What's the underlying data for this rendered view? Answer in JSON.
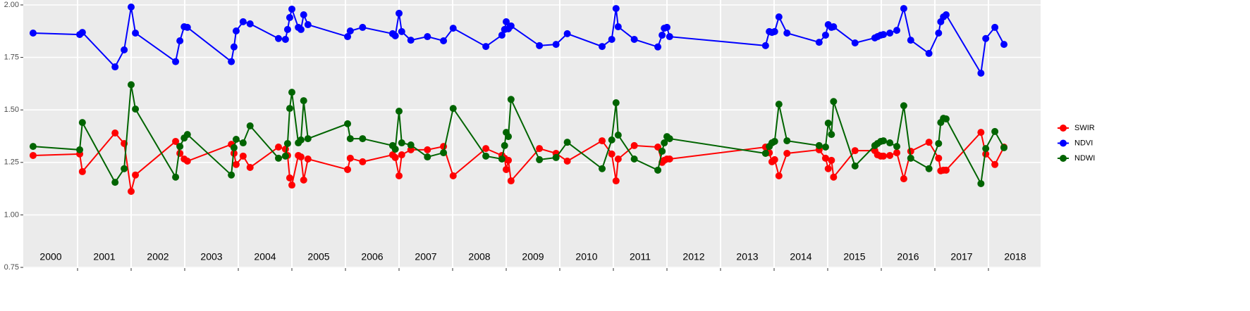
{
  "chart_data": {
    "type": "line",
    "x": [
      2000.17,
      2001.04,
      2001.09,
      2001.7,
      2001.87,
      2002.0,
      2002.08,
      2002.83,
      2002.91,
      2002.99,
      2003.05,
      2003.87,
      2003.92,
      2003.96,
      2004.09,
      2004.22,
      2004.75,
      2004.88,
      2004.92,
      2004.96,
      2005.0,
      2005.12,
      2005.17,
      2005.22,
      2005.3,
      2006.04,
      2006.09,
      2006.32,
      2006.88,
      2006.93,
      2007.0,
      2007.05,
      2007.22,
      2007.53,
      2007.83,
      2008.01,
      2008.62,
      2008.92,
      2008.97,
      2009.0,
      2009.04,
      2009.09,
      2009.62,
      2009.93,
      2010.14,
      2010.79,
      2010.97,
      2011.05,
      2011.09,
      2011.39,
      2011.83,
      2011.91,
      2011.95,
      2012.0,
      2012.05,
      2013.84,
      2013.91,
      2013.96,
      2014.01,
      2014.09,
      2014.24,
      2014.84,
      2014.96,
      2015.01,
      2015.07,
      2015.11,
      2015.51,
      2015.88,
      2015.93,
      2015.99,
      2016.04,
      2016.16,
      2016.29,
      2016.42,
      2016.55,
      2016.89,
      2017.07,
      2017.11,
      2017.16,
      2017.21,
      2017.86,
      2017.95,
      2018.12,
      2018.29
    ],
    "series": [
      {
        "name": "SWIR",
        "color": "#ff0000",
        "values": [
          1.283,
          1.29,
          1.206,
          1.39,
          1.34,
          1.112,
          1.19,
          1.35,
          1.293,
          1.266,
          1.256,
          1.336,
          1.293,
          1.24,
          1.28,
          1.226,
          1.323,
          1.313,
          1.283,
          1.176,
          1.142,
          1.283,
          1.276,
          1.166,
          1.266,
          1.216,
          1.27,
          1.253,
          1.286,
          1.273,
          1.186,
          1.286,
          1.31,
          1.31,
          1.326,
          1.186,
          1.316,
          1.283,
          1.27,
          1.216,
          1.26,
          1.162,
          1.316,
          1.293,
          1.256,
          1.353,
          1.29,
          1.162,
          1.266,
          1.33,
          1.323,
          1.25,
          1.26,
          1.266,
          1.266,
          1.323,
          1.296,
          1.253,
          1.263,
          1.186,
          1.293,
          1.31,
          1.27,
          1.22,
          1.26,
          1.18,
          1.306,
          1.306,
          1.286,
          1.28,
          1.28,
          1.283,
          1.296,
          1.172,
          1.303,
          1.346,
          1.27,
          1.21,
          1.213,
          1.213,
          1.393,
          1.29,
          1.24,
          1.323
        ]
      },
      {
        "name": "NDVI",
        "color": "#0000ff",
        "values": [
          1.866,
          1.859,
          1.869,
          1.705,
          1.786,
          1.99,
          1.866,
          1.73,
          1.829,
          1.896,
          1.893,
          1.73,
          1.8,
          1.876,
          1.92,
          1.91,
          1.84,
          1.836,
          1.883,
          1.94,
          1.98,
          1.893,
          1.883,
          1.953,
          1.906,
          1.849,
          1.876,
          1.893,
          1.863,
          1.853,
          1.96,
          1.873,
          1.832,
          1.849,
          1.829,
          1.889,
          1.802,
          1.856,
          1.883,
          1.92,
          1.886,
          1.9,
          1.806,
          1.812,
          1.863,
          1.802,
          1.836,
          1.983,
          1.896,
          1.836,
          1.8,
          1.856,
          1.889,
          1.893,
          1.849,
          1.806,
          1.873,
          1.869,
          1.873,
          1.943,
          1.866,
          1.822,
          1.856,
          1.906,
          1.893,
          1.896,
          1.819,
          1.843,
          1.849,
          1.856,
          1.859,
          1.866,
          1.879,
          1.983,
          1.832,
          1.769,
          1.866,
          1.92,
          1.943,
          1.953,
          1.675,
          1.84,
          1.893,
          1.812
        ]
      },
      {
        "name": "NDWI",
        "color": "#006400",
        "values": [
          1.326,
          1.31,
          1.44,
          1.155,
          1.22,
          1.62,
          1.504,
          1.18,
          1.326,
          1.366,
          1.383,
          1.19,
          1.32,
          1.36,
          1.343,
          1.424,
          1.27,
          1.28,
          1.34,
          1.507,
          1.584,
          1.343,
          1.357,
          1.544,
          1.363,
          1.434,
          1.363,
          1.363,
          1.33,
          1.313,
          1.494,
          1.343,
          1.333,
          1.276,
          1.296,
          1.507,
          1.28,
          1.266,
          1.33,
          1.393,
          1.373,
          1.55,
          1.263,
          1.273,
          1.346,
          1.22,
          1.357,
          1.534,
          1.38,
          1.266,
          1.213,
          1.303,
          1.343,
          1.373,
          1.363,
          1.293,
          1.326,
          1.343,
          1.35,
          1.527,
          1.353,
          1.33,
          1.323,
          1.437,
          1.383,
          1.54,
          1.233,
          1.33,
          1.34,
          1.35,
          1.353,
          1.343,
          1.326,
          1.52,
          1.27,
          1.22,
          1.34,
          1.44,
          1.46,
          1.457,
          1.149,
          1.316,
          1.397,
          1.32
        ]
      }
    ],
    "xlim": [
      2000,
      2019
    ],
    "xticks": [
      {
        "value": 2000.5,
        "label": "2000"
      },
      {
        "value": 2001.5,
        "label": "2001"
      },
      {
        "value": 2002.5,
        "label": "2002"
      },
      {
        "value": 2003.5,
        "label": "2003"
      },
      {
        "value": 2004.5,
        "label": "2004"
      },
      {
        "value": 2005.5,
        "label": "2005"
      },
      {
        "value": 2006.5,
        "label": "2006"
      },
      {
        "value": 2007.5,
        "label": "2007"
      },
      {
        "value": 2008.5,
        "label": "2008"
      },
      {
        "value": 2009.5,
        "label": "2009"
      },
      {
        "value": 2010.5,
        "label": "2010"
      },
      {
        "value": 2011.5,
        "label": "2011"
      },
      {
        "value": 2012.5,
        "label": "2012"
      },
      {
        "value": 2013.5,
        "label": "2013"
      },
      {
        "value": 2014.5,
        "label": "2014"
      },
      {
        "value": 2015.5,
        "label": "2015"
      },
      {
        "value": 2016.5,
        "label": "2016"
      },
      {
        "value": 2017.5,
        "label": "2017"
      },
      {
        "value": 2018.5,
        "label": "2018"
      }
    ],
    "xgrid": [
      2001,
      2002,
      2003,
      2004,
      2005,
      2006,
      2007,
      2008,
      2009,
      2010,
      2011,
      2012,
      2013,
      2014,
      2015,
      2016,
      2017,
      2018
    ],
    "ylim": [
      0.75,
      2.0
    ],
    "yticks": [
      {
        "value": 0.75,
        "label": "0.75"
      },
      {
        "value": 1.0,
        "label": "1.00"
      },
      {
        "value": 1.25,
        "label": "1.25"
      },
      {
        "value": 1.5,
        "label": "1.50"
      },
      {
        "value": 1.75,
        "label": "1.75"
      },
      {
        "value": 2.0,
        "label": "2.00"
      }
    ],
    "grid": true,
    "legend": "right"
  }
}
